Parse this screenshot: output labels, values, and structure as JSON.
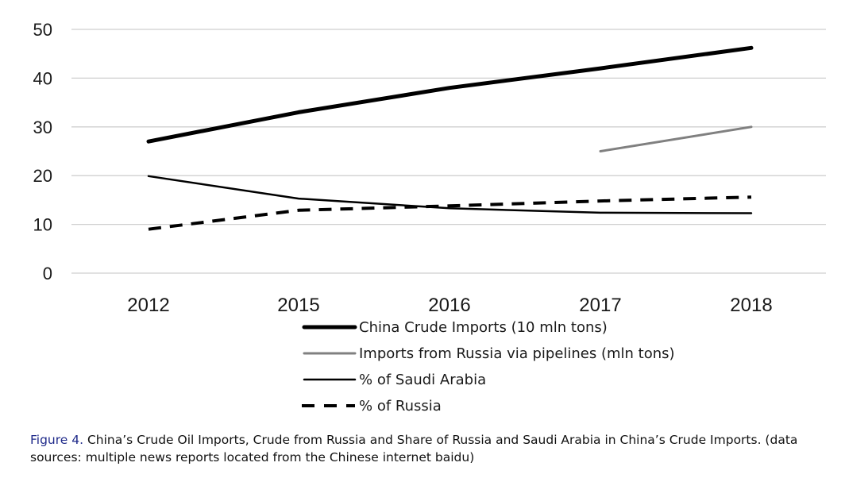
{
  "chart_data": {
    "type": "line",
    "categories": [
      "2012",
      "2015",
      "2016",
      "2017",
      "2018"
    ],
    "ylim": [
      0,
      50
    ],
    "yticks": [
      0,
      10,
      20,
      30,
      40,
      50
    ],
    "grid": true,
    "legend_position": "bottom",
    "series": [
      {
        "name": "China Crude Imports (10 mln tons)",
        "values": [
          27,
          33,
          38,
          42,
          46.2
        ],
        "color": "#000000",
        "style": "thick"
      },
      {
        "name": "Imports from Russia via pipelines (mln tons)",
        "values": [
          null,
          null,
          null,
          25,
          30
        ],
        "color": "#808080",
        "style": "medium"
      },
      {
        "name": "% of Saudi Arabia",
        "values": [
          19.9,
          15.3,
          13.3,
          12.4,
          12.3
        ],
        "color": "#000000",
        "style": "thin"
      },
      {
        "name": "% of Russia",
        "values": [
          9,
          12.9,
          13.8,
          14.8,
          15.6
        ],
        "color": "#000000",
        "style": "dashed"
      }
    ]
  },
  "caption": {
    "label": "Figure 4.",
    "text": "China’s Crude Oil Imports, Crude from Russia and Share of Russia and Saudi Arabia in China’s Crude Imports. (data sources: multiple news reports located from the Chinese internet baidu)"
  }
}
